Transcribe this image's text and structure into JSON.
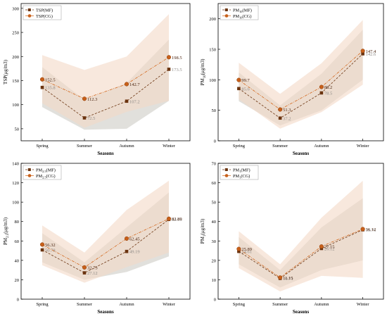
{
  "colors": {
    "mf_line": "#6b3410",
    "mf_marker": "#6b3410",
    "cg_line": "#d4691e",
    "cg_marker": "#c8601a",
    "mf_band": "#dcdad6",
    "cg_band": "#f3d9c7",
    "mf_label": "#8e8a86",
    "cg_label": "#4a2410",
    "axis": "#000000"
  },
  "chart_data": [
    {
      "type": "line",
      "id": "tsp",
      "categories": [
        "Spring",
        "Summer",
        "Autumn",
        "Winter"
      ],
      "xlabel": "Seasons",
      "ylabel": "TSP(μg/m3)",
      "ylim": [
        25,
        310
      ],
      "yticks": [
        50,
        100,
        150,
        200,
        250,
        300
      ],
      "legend": [
        "TSP(MF)",
        "TSP(CG)"
      ],
      "legend_position": "top-left",
      "series": [
        {
          "name": "TSP(MF)",
          "key": "mf",
          "values": [
            135.8,
            72.5,
            107.2,
            173.5
          ],
          "labels": [
            "135.8",
            "72.5",
            "107.2",
            "173.5"
          ],
          "lower": [
            95,
            48,
            50,
            108
          ],
          "upper": [
            178,
            110,
            145,
            235
          ]
        },
        {
          "name": "TSP(CG)",
          "key": "cg",
          "values": [
            152.5,
            112.3,
            142.7,
            198.5
          ],
          "labels": [
            "152.5",
            "112.3",
            "142.7",
            "198.5"
          ],
          "lower": [
            103,
            52,
            85,
            108
          ],
          "upper": [
            203,
            172,
            200,
            288
          ]
        }
      ]
    },
    {
      "type": "line",
      "id": "pm10",
      "categories": [
        "Spring",
        "Summer",
        "Autumn",
        "Winter"
      ],
      "xlabel": "Seasons",
      "ylabel": "PM10(μg/m3)",
      "ylim": [
        0,
        225
      ],
      "yticks": [
        0,
        50,
        100,
        150,
        200
      ],
      "legend": [
        "PM10(MF)",
        "PM10(CG)"
      ],
      "legend_position": "top-left",
      "series": [
        {
          "name": "PM10(MF)",
          "key": "mf",
          "values": [
            85.6,
            37.2,
            78.5,
            142.6
          ],
          "labels": [
            "85.6",
            "37.2",
            "78.5",
            "142.6"
          ],
          "lower": [
            65,
            25,
            50,
            100
          ],
          "upper": [
            112,
            58,
            110,
            182
          ]
        },
        {
          "name": "PM10(CG)",
          "key": "cg",
          "values": [
            99.7,
            51.3,
            88.2,
            147.4
          ],
          "labels": [
            "99.7",
            "51.3",
            "88.2",
            "147.4"
          ],
          "lower": [
            68,
            20,
            47,
            92
          ],
          "upper": [
            128,
            77,
            127,
            198
          ]
        }
      ]
    },
    {
      "type": "line",
      "id": "pm25",
      "categories": [
        "Spring",
        "Summer",
        "Autumn",
        "Winter"
      ],
      "xlabel": "Seasons",
      "ylabel": "PM2.5(μg/m3)",
      "ylim": [
        0,
        140
      ],
      "yticks": [
        0,
        20,
        40,
        60,
        80,
        100,
        120,
        140
      ],
      "legend": [
        "PM2.5(MF)",
        "PM2.5(CG)"
      ],
      "legend_position": "top-left",
      "series": [
        {
          "name": "PM2.5(MF)",
          "key": "mf",
          "values": [
            50.78,
            27.12,
            49.19,
            82.16
          ],
          "labels": [
            "50.78",
            "27.12",
            "49.19",
            "82.16"
          ],
          "lower": [
            38,
            20,
            28,
            44
          ],
          "upper": [
            68,
            38,
            74,
            110
          ]
        },
        {
          "name": "PM2.5(CG)",
          "key": "cg",
          "values": [
            56.32,
            32.73,
            62.45,
            82.89
          ],
          "labels": [
            "56.32",
            "32.73",
            "62.45",
            "82.89"
          ],
          "lower": [
            35,
            17,
            33,
            48
          ],
          "upper": [
            76,
            48,
            92,
            122
          ]
        }
      ]
    },
    {
      "type": "line",
      "id": "pm1",
      "categories": [
        "Spring",
        "Summer",
        "Autumn",
        "Winter"
      ],
      "xlabel": "Seasons",
      "ylabel": "PM1(μg/m3)",
      "ylim": [
        0,
        70
      ],
      "yticks": [
        0,
        10,
        20,
        30,
        40,
        50,
        60,
        70
      ],
      "legend": [
        "PM1(MF)",
        "PM1(CG)"
      ],
      "legend_position": "top-left",
      "series": [
        {
          "name": "PM1(MF)",
          "key": "mf",
          "values": [
            24.61,
            10.71,
            26.12,
            35.76
          ],
          "labels": [
            "24.61",
            "10.71",
            "26.12",
            "35.76"
          ],
          "lower": [
            18,
            6,
            15,
            20
          ],
          "upper": [
            32,
            15,
            37,
            52
          ]
        },
        {
          "name": "PM1(CG)",
          "key": "cg",
          "values": [
            25.89,
            11.15,
            27.15,
            36.12
          ],
          "labels": [
            "25.89",
            "11.15",
            "27.15",
            "36.12"
          ],
          "lower": [
            16,
            4,
            12,
            11
          ],
          "upper": [
            35,
            18,
            42,
            61
          ]
        }
      ]
    }
  ]
}
